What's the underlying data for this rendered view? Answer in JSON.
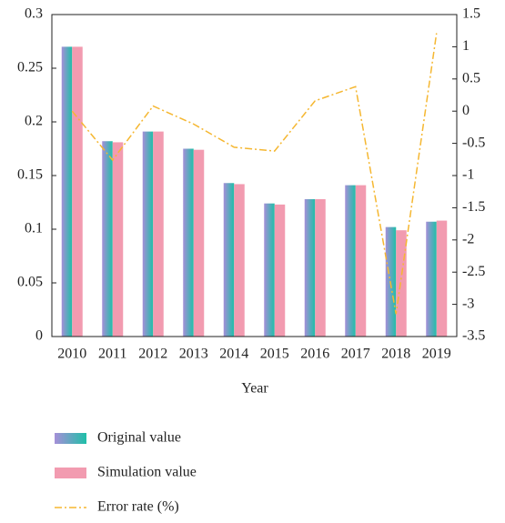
{
  "chart_data": {
    "type": "bar_line",
    "xlabel": "Year",
    "categories": [
      "2010",
      "2011",
      "2012",
      "2013",
      "2014",
      "2015",
      "2016",
      "2017",
      "2018",
      "2019"
    ],
    "series": [
      {
        "name": "Original value",
        "type": "bar",
        "color": "#1fbfa8",
        "values": [
          0.27,
          0.182,
          0.191,
          0.175,
          0.143,
          0.124,
          0.128,
          0.141,
          0.102,
          0.107
        ]
      },
      {
        "name": "Simulation value",
        "type": "bar",
        "color": "#f29bb0",
        "values": [
          0.27,
          0.181,
          0.191,
          0.174,
          0.142,
          0.123,
          0.128,
          0.141,
          0.099,
          0.108
        ]
      },
      {
        "name": "Error rate (%)",
        "type": "line",
        "axis": "y2",
        "color": "#f5b731",
        "values": [
          0,
          -0.76,
          0.08,
          -0.2,
          -0.56,
          -0.62,
          0.16,
          0.38,
          -3.15,
          1.21
        ]
      }
    ],
    "ylim": [
      0,
      0.3
    ],
    "yticks": [
      0,
      0.05,
      0.1,
      0.15,
      0.2,
      0.25,
      0.3
    ],
    "y2lim": [
      -3.5,
      1.5
    ],
    "y2ticks": [
      -3.5,
      -3,
      -2.5,
      -2,
      -1.5,
      -1,
      -0.5,
      0,
      0.5,
      1,
      1.5
    ],
    "grid": false,
    "legend": "bottom"
  }
}
